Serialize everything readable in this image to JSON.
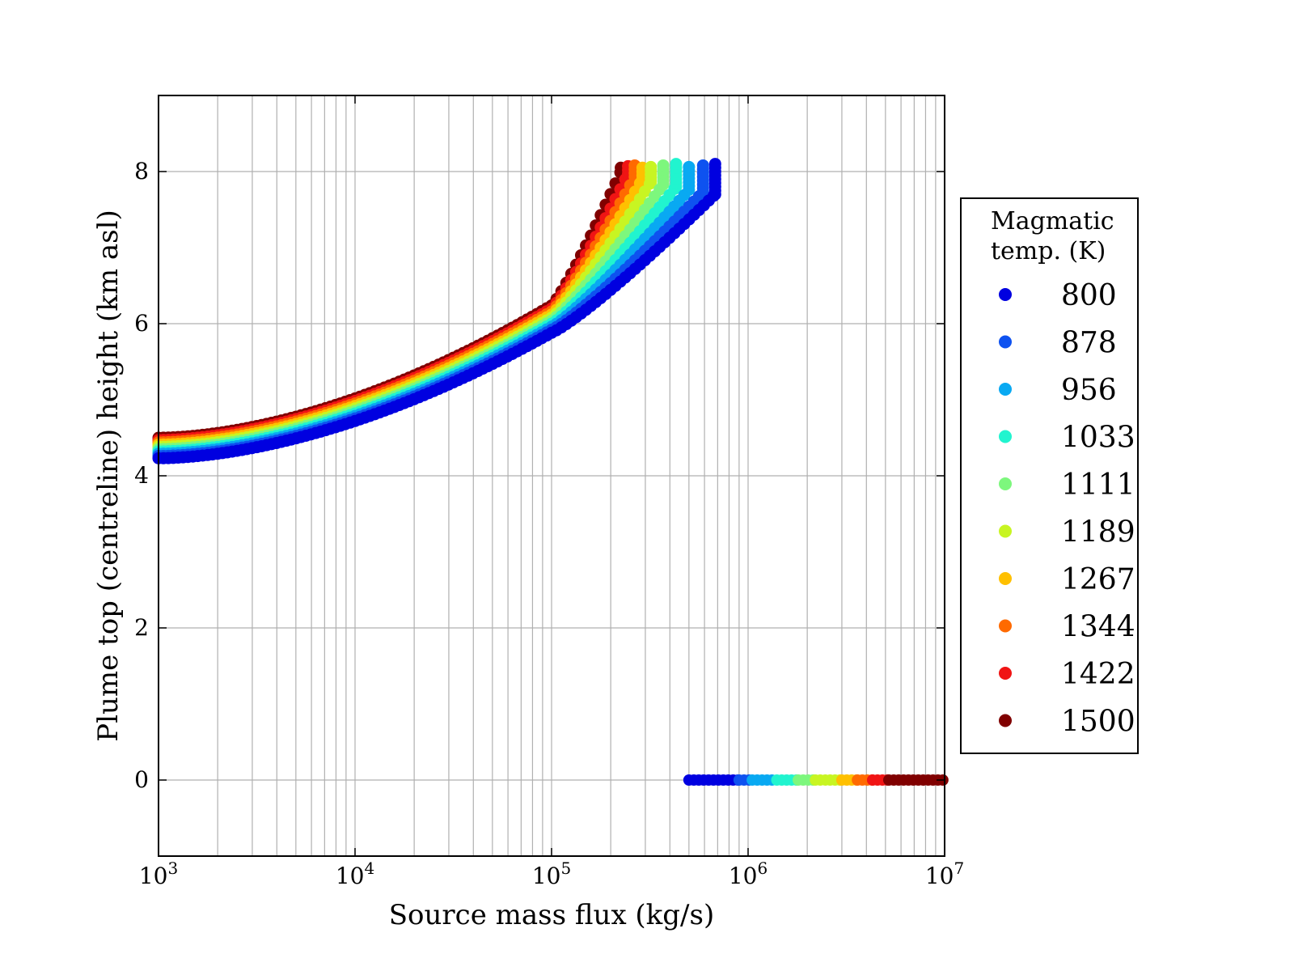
{
  "chart_data": {
    "type": "scatter",
    "xscale": "log",
    "xlim": [
      1000,
      10000000
    ],
    "ylim": [
      -1,
      9
    ],
    "xlabel": "Source mass flux (kg/s)",
    "ylabel": "Plume top (centreline) height (km asl)",
    "grid": true,
    "x_ticks": [
      {
        "base": "10",
        "exp": "3",
        "value": 1000
      },
      {
        "base": "10",
        "exp": "4",
        "value": 10000
      },
      {
        "base": "10",
        "exp": "5",
        "value": 100000
      },
      {
        "base": "10",
        "exp": "6",
        "value": 1000000
      },
      {
        "base": "10",
        "exp": "7",
        "value": 10000000
      }
    ],
    "y_ticks": [
      {
        "label": "0",
        "value": 0
      },
      {
        "label": "2",
        "value": 2
      },
      {
        "label": "4",
        "value": 4
      },
      {
        "label": "6",
        "value": 6
      },
      {
        "label": "8",
        "value": 8
      }
    ],
    "legend": {
      "title_line1": "Magmatic",
      "title_line2": "temp. (K)",
      "placement": "right-outside",
      "entries": [
        {
          "label": "800",
          "color": "#0000e0"
        },
        {
          "label": "878",
          "color": "#0e52f0"
        },
        {
          "label": "956",
          "color": "#09a9f2"
        },
        {
          "label": "1033",
          "color": "#21f4cf"
        },
        {
          "label": "1111",
          "color": "#7df77d"
        },
        {
          "label": "1189",
          "color": "#c8f522"
        },
        {
          "label": "1267",
          "color": "#ffc000"
        },
        {
          "label": "1344",
          "color": "#ff6a00"
        },
        {
          "label": "1422",
          "color": "#f01414"
        },
        {
          "label": "1500",
          "color": "#800000"
        }
      ]
    },
    "series": [
      {
        "name": "800",
        "color": "#0000e0",
        "h_start": 4.23,
        "h_mid": 5.88,
        "x_cutoff": 680000,
        "h_cut": 7.7
      },
      {
        "name": "878",
        "color": "#0e52f0",
        "h_start": 4.26,
        "h_mid": 5.92,
        "x_cutoff": 590000,
        "h_cut": 7.73
      },
      {
        "name": "956",
        "color": "#09a9f2",
        "h_start": 4.29,
        "h_mid": 5.96,
        "x_cutoff": 500000,
        "h_cut": 7.76
      },
      {
        "name": "1033",
        "color": "#21f4cf",
        "h_start": 4.32,
        "h_mid": 6.0,
        "x_cutoff": 430000,
        "h_cut": 7.8
      },
      {
        "name": "1111",
        "color": "#7df77d",
        "h_start": 4.35,
        "h_mid": 6.04,
        "x_cutoff": 370000,
        "h_cut": 7.83
      },
      {
        "name": "1189",
        "color": "#c8f522",
        "h_start": 4.38,
        "h_mid": 6.08,
        "x_cutoff": 320000,
        "h_cut": 7.86
      },
      {
        "name": "1267",
        "color": "#ffc000",
        "h_start": 4.41,
        "h_mid": 6.12,
        "x_cutoff": 290000,
        "h_cut": 7.9
      },
      {
        "name": "1344",
        "color": "#ff6a00",
        "h_start": 4.44,
        "h_mid": 6.16,
        "x_cutoff": 265000,
        "h_cut": 7.93
      },
      {
        "name": "1422",
        "color": "#f01414",
        "h_start": 4.47,
        "h_mid": 6.2,
        "x_cutoff": 245000,
        "h_cut": 7.97
      },
      {
        "name": "1500",
        "color": "#800000",
        "h_start": 4.5,
        "h_mid": 6.24,
        "x_cutoff": 225000,
        "h_cut": 8.0
      }
    ],
    "collapse_rows": [
      {
        "color": "#0000e0",
        "x_from": 500000,
        "x_to": 900000
      },
      {
        "color": "#0e52f0",
        "x_from": 900000,
        "x_to": 1050000
      },
      {
        "color": "#09a9f2",
        "x_from": 1050000,
        "x_to": 1400000
      },
      {
        "color": "#21f4cf",
        "x_from": 1400000,
        "x_to": 1800000
      },
      {
        "color": "#7df77d",
        "x_from": 1800000,
        "x_to": 2200000
      },
      {
        "color": "#c8f522",
        "x_from": 2200000,
        "x_to": 3000000
      },
      {
        "color": "#ffc000",
        "x_from": 3000000,
        "x_to": 3600000
      },
      {
        "color": "#ff6a00",
        "x_from": 3600000,
        "x_to": 4300000
      },
      {
        "color": "#f01414",
        "x_from": 4300000,
        "x_to": 5200000
      },
      {
        "color": "#800000",
        "x_from": 5200000,
        "x_to": 10000000
      }
    ]
  }
}
